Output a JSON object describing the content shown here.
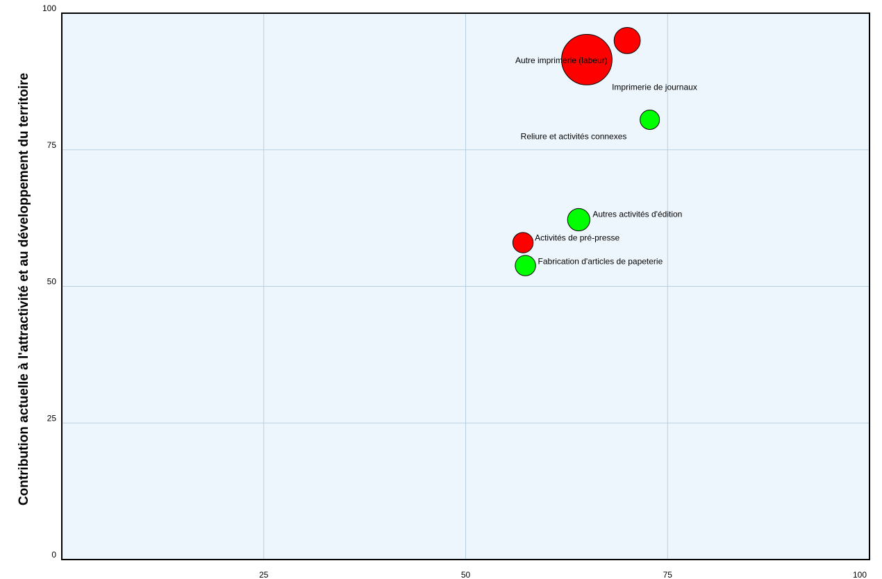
{
  "chart_data": {
    "type": "scatter",
    "title": "",
    "xlabel": "",
    "ylabel": "Contribution actuelle à l'attractivité et au développement du territoire",
    "xlim": [
      0,
      100
    ],
    "ylim": [
      0,
      100
    ],
    "xticks": [
      "25",
      "50",
      "75",
      "100"
    ],
    "yticks": [
      "0",
      "25",
      "50",
      "75",
      "100"
    ],
    "grid": true,
    "legend": "none",
    "colors": {
      "plot_background": "#eef6fd",
      "grid": "#b8cfe0",
      "red": "#ff0000",
      "green": "#00ff00"
    },
    "points": [
      {
        "label": "Autre imprimerie (labeur)",
        "x": 65.0,
        "y": 91.5,
        "size": 2.6,
        "color": "red"
      },
      {
        "label": "Imprimerie de journaux",
        "x": 70.0,
        "y": 95.0,
        "size": 1.35,
        "color": "red"
      },
      {
        "label": "Reliure et activités connexes",
        "x": 72.8,
        "y": 80.5,
        "size": 1.0,
        "color": "green"
      },
      {
        "label": "Autres activités d'édition",
        "x": 64.0,
        "y": 62.2,
        "size": 1.15,
        "color": "green"
      },
      {
        "label": "Activités de pré-presse",
        "x": 57.1,
        "y": 58.0,
        "size": 1.05,
        "color": "red"
      },
      {
        "label": "Fabrication d'articles de papeterie",
        "x": 57.4,
        "y": 53.8,
        "size": 1.05,
        "color": "green"
      }
    ]
  }
}
